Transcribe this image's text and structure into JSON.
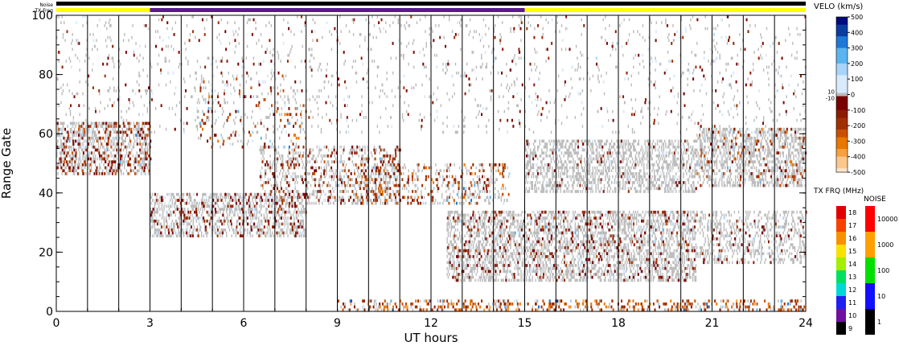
{
  "chart_data": {
    "type": "heatmap",
    "title": "",
    "xlabel": "UT hours",
    "ylabel": "Range Gate",
    "xlim": [
      0,
      24
    ],
    "ylim": [
      0,
      100
    ],
    "x_ticks": [
      0,
      3,
      6,
      9,
      12,
      15,
      18,
      21,
      24
    ],
    "y_ticks": [
      0,
      20,
      40,
      60,
      80,
      100
    ],
    "x_tick_labels": [
      "0",
      "3",
      "6",
      "9",
      "12",
      "15",
      "18",
      "21",
      "24"
    ],
    "y_tick_labels": [
      "0",
      "20",
      "40",
      "60",
      "80",
      "100"
    ],
    "scan_boundaries_hours": [
      1,
      2,
      3,
      4,
      5,
      6,
      7,
      8,
      9,
      10,
      11,
      12,
      13,
      14,
      15,
      16,
      17,
      18,
      19,
      20,
      21,
      22,
      23
    ],
    "top_strips": {
      "noise_label": "Noise",
      "txfreq_label": "TX Freq",
      "noise_color": "#000000",
      "txfreq_segments": [
        {
          "start": 0,
          "end": 3,
          "color": "#ffff00"
        },
        {
          "start": 3,
          "end": 15,
          "color": "#5a1a8c"
        },
        {
          "start": 15,
          "end": 24,
          "color": "#ffff00"
        }
      ]
    },
    "ground_scatter_color": "#bbbbbb",
    "echo_regions": [
      {
        "t0": 0.0,
        "t1": 3.0,
        "g0": 46,
        "g1": 64,
        "density": 0.35,
        "gs": 0.55,
        "vel": -150
      },
      {
        "t0": 3.0,
        "t1": 8.0,
        "g0": 25,
        "g1": 40,
        "density": 0.28,
        "gs": 0.5,
        "vel": -80
      },
      {
        "t0": 6.5,
        "t1": 11.0,
        "g0": 36,
        "g1": 56,
        "density": 0.22,
        "gs": 0.3,
        "vel": -120
      },
      {
        "t0": 9.5,
        "t1": 14.5,
        "g0": 36,
        "g1": 50,
        "density": 0.22,
        "gs": 0.2,
        "vel": -200
      },
      {
        "t0": 12.5,
        "t1": 20.5,
        "g0": 10,
        "g1": 34,
        "density": 0.18,
        "gs": 0.6,
        "vel": -100
      },
      {
        "t0": 15.0,
        "t1": 20.5,
        "g0": 40,
        "g1": 58,
        "density": 0.06,
        "gs": 0.6,
        "vel": -60
      },
      {
        "t0": 20.5,
        "t1": 24.0,
        "g0": 42,
        "g1": 62,
        "density": 0.14,
        "gs": 0.6,
        "vel": -180
      },
      {
        "t0": 20.5,
        "t1": 24.0,
        "g0": 16,
        "g1": 34,
        "density": 0.1,
        "gs": 0.4,
        "vel": -90
      },
      {
        "t0": 9.0,
        "t1": 24.0,
        "g0": 0,
        "g1": 4,
        "density": 0.45,
        "gs": 0.1,
        "vel": -250
      },
      {
        "t0": 0.0,
        "t1": 24.0,
        "g0": 60,
        "g1": 100,
        "density": 0.03,
        "gs": 0.05,
        "vel": -50
      },
      {
        "t0": 4.5,
        "t1": 8.0,
        "g0": 55,
        "g1": 80,
        "density": 0.08,
        "gs": 0.05,
        "vel": -200
      }
    ],
    "velocity_scale": {
      "label": "VELO (km/s)",
      "ticks": [
        "500",
        "400",
        "300",
        "200",
        "100",
        "0",
        "-100",
        "-200",
        "-300",
        "-400",
        "-500"
      ],
      "small_ticks": [
        "10",
        "-10"
      ],
      "range": [
        -500,
        500
      ],
      "colors_positive": [
        "#ffffff",
        "#d8eafc",
        "#a8d4f8",
        "#5ab4f0",
        "#1e78d8",
        "#0a3ca0",
        "#000a7a"
      ],
      "colors_negative": [
        "#ffffff",
        "#7a0000",
        "#8c1c00",
        "#a03000",
        "#c85000",
        "#e87800",
        "#f8a040",
        "#fbc88c",
        "#fde6cc"
      ]
    },
    "txfreq_scale": {
      "label": "TX FRQ (MHz)",
      "ticks": [
        "18",
        "17",
        "16",
        "15",
        "14",
        "13",
        "12",
        "11",
        "10",
        "9"
      ],
      "colors": [
        "#e00000",
        "#f84000",
        "#f89000",
        "#f8e000",
        "#a0f000",
        "#00e060",
        "#00d8d8",
        "#2020f0",
        "#7010a0",
        "#000000"
      ]
    },
    "noise_scale": {
      "label": "NOISE",
      "ticks": [
        "10000",
        "1000",
        "100",
        "10",
        "1"
      ],
      "colors": [
        "#ff0000",
        "#ffa000",
        "#00e000",
        "#1010ff",
        "#000000"
      ]
    }
  }
}
